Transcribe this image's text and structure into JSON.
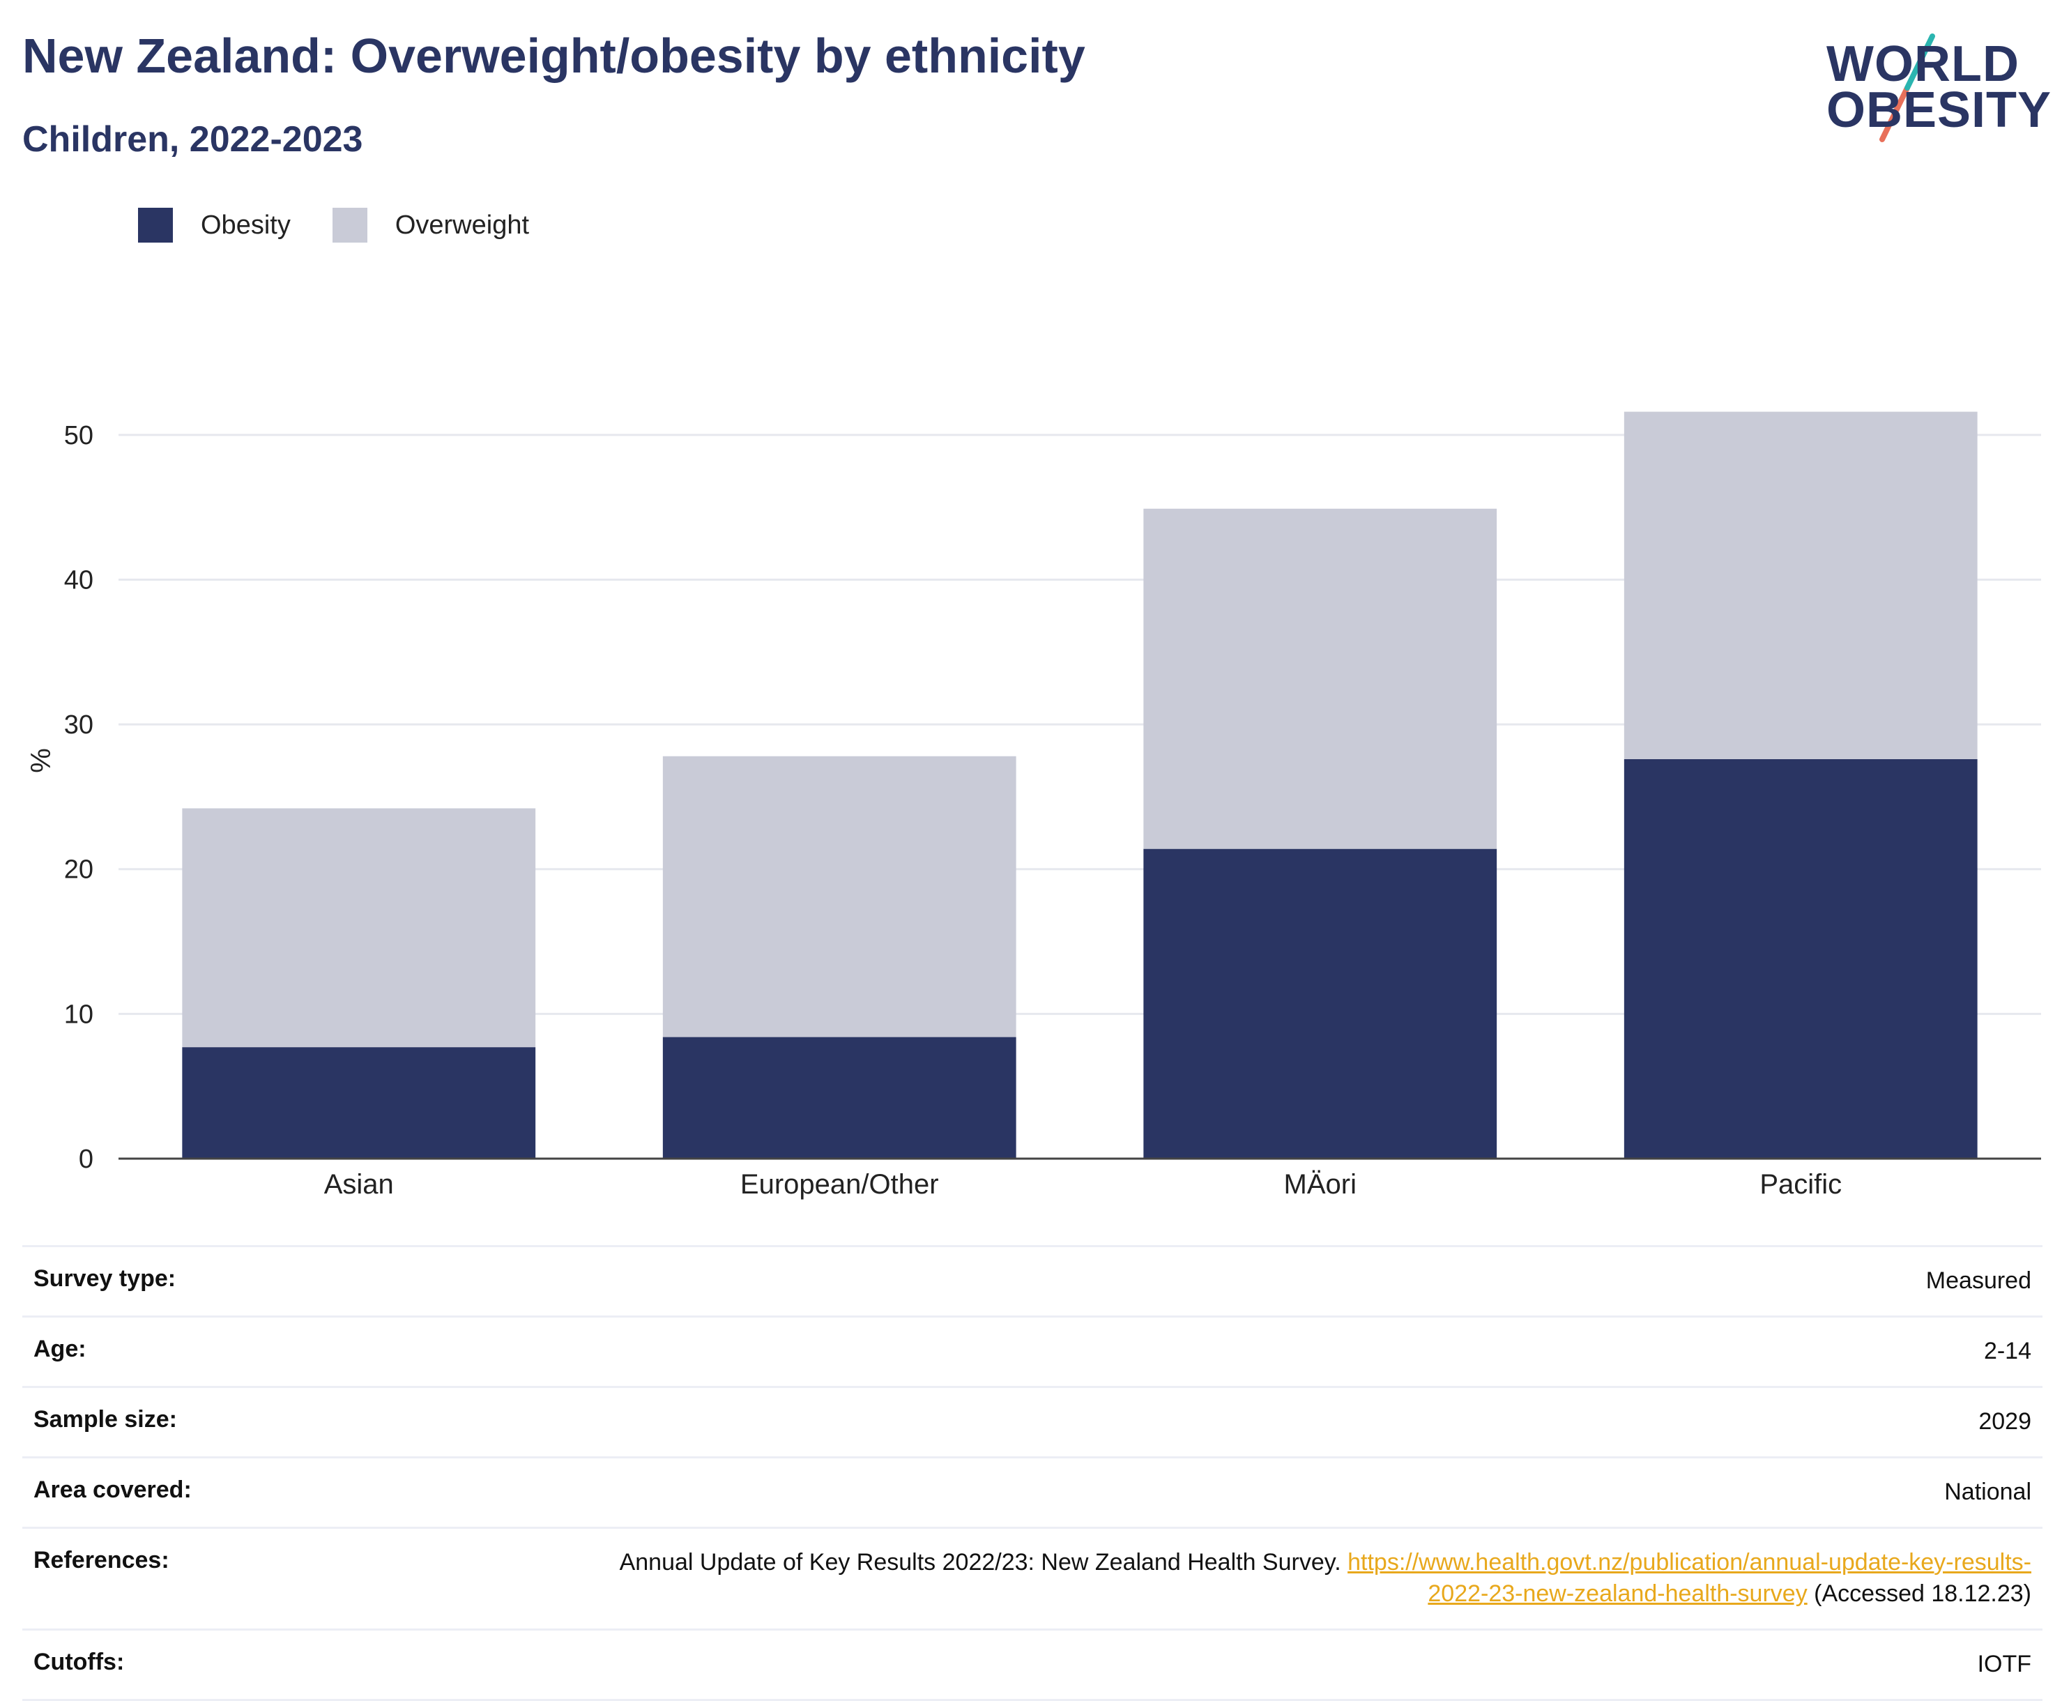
{
  "header": {
    "title": "New Zealand: Overweight/obesity by ethnicity",
    "subtitle": "Children, 2022-2023"
  },
  "logo": {
    "line1": "WORLD",
    "line2": "OBESITY",
    "colors": {
      "text": "#2a3563",
      "slash_top": "#2bb5b0",
      "slash_bottom": "#e8705a"
    }
  },
  "legend": [
    {
      "label": "Obesity",
      "color": "#2a3563"
    },
    {
      "label": "Overweight",
      "color": "#c9cbd7"
    }
  ],
  "chart_data": {
    "type": "bar",
    "stacked": true,
    "categories": [
      "Asian",
      "European/Other",
      "MÄori",
      "Pacific"
    ],
    "series": [
      {
        "name": "Obesity",
        "color": "#2a3563",
        "values": [
          7.7,
          8.4,
          21.4,
          27.6
        ]
      },
      {
        "name": "Overweight",
        "color": "#c9cbd7",
        "values": [
          16.5,
          19.4,
          23.5,
          24.0
        ]
      }
    ],
    "ylabel": "%",
    "xlabel": "",
    "ylim": [
      0,
      55
    ],
    "yticks": [
      0,
      10,
      20,
      30,
      40,
      50
    ],
    "grid": true,
    "legend_position": "top-left"
  },
  "info": {
    "rows": [
      {
        "key": "Survey type:",
        "value": "Measured"
      },
      {
        "key": "Age:",
        "value": "2-14"
      },
      {
        "key": "Sample size:",
        "value": "2029"
      },
      {
        "key": "Area covered:",
        "value": "National"
      },
      {
        "key": "References:",
        "value": "Annual Update of Key Results 2022/23: New Zealand Health Survey.",
        "link": "https://www.health.govt.nz/publication/annual-update-key-results-2022-23-new-zealand-health-survey",
        "suffix": "(Accessed 18.12.23)"
      },
      {
        "key": "Cutoffs:",
        "value": "IOTF"
      }
    ]
  }
}
